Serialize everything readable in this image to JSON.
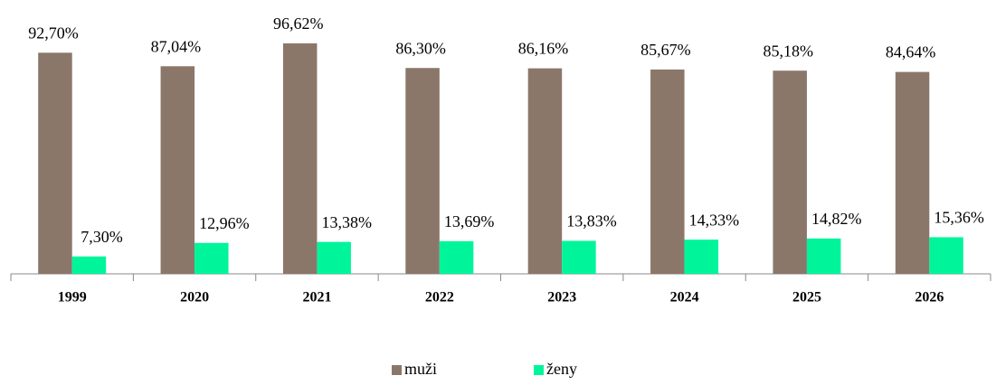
{
  "chart_data": {
    "type": "bar",
    "categories": [
      "1999",
      "2020",
      "2021",
      "2022",
      "2023",
      "2024",
      "2025",
      "2026"
    ],
    "series": [
      {
        "name": "muži",
        "color": "#8b7769",
        "values": [
          92.7,
          87.04,
          96.62,
          86.3,
          86.16,
          85.67,
          85.18,
          84.64
        ],
        "value_labels": [
          "92,70%",
          "87,04%",
          "96,62%",
          "86,30%",
          "86,16%",
          "85,67%",
          "85,18%",
          "84,64%"
        ]
      },
      {
        "name": "ženy",
        "color": "#00f59b",
        "values": [
          7.3,
          12.96,
          13.38,
          13.69,
          13.83,
          14.33,
          14.82,
          15.36
        ],
        "value_labels": [
          "7,30%",
          "12,96%",
          "13,38%",
          "13,69%",
          "13,83%",
          "14,33%",
          "14,82%",
          "15,36%"
        ]
      }
    ],
    "legend": "bottom"
  }
}
